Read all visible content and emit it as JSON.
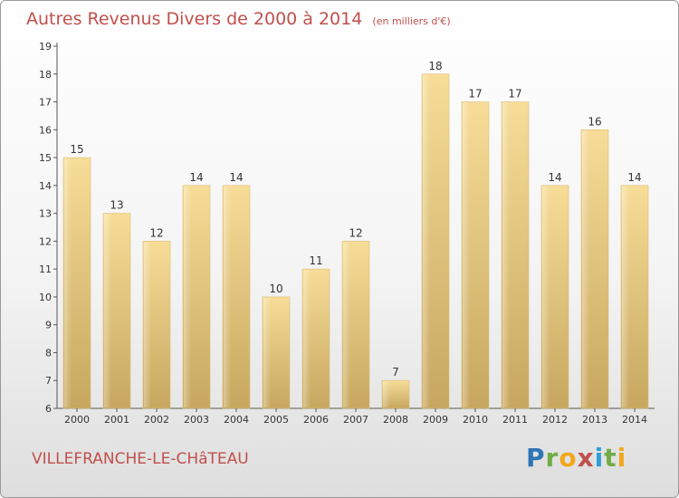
{
  "header": {
    "title": "Autres Revenus Divers de 2000 à 2014",
    "subtitle": "(en milliers d'€)"
  },
  "footer": {
    "commune": "VILLEFRANCHE-LE-CHâTEAU",
    "logo": [
      "P",
      "r",
      "o",
      "x",
      "i",
      "t",
      "i"
    ]
  },
  "chart_data": {
    "type": "bar",
    "title": "Autres Revenus Divers de 2000 à 2014",
    "subtitle": "(en milliers d'€)",
    "xlabel": "",
    "ylabel": "",
    "categories": [
      "2000",
      "2001",
      "2002",
      "2003",
      "2004",
      "2005",
      "2006",
      "2007",
      "2008",
      "2009",
      "2010",
      "2011",
      "2012",
      "2013",
      "2014"
    ],
    "values": [
      15,
      13,
      12,
      14,
      14,
      10,
      11,
      12,
      7,
      18,
      17,
      17,
      14,
      16,
      14
    ],
    "ylim": [
      6,
      19
    ],
    "yticks": [
      6,
      7,
      8,
      9,
      10,
      11,
      12,
      13,
      14,
      15,
      16,
      17,
      18,
      19
    ],
    "grid": false,
    "bar_color": "#f2d590",
    "bar_color_dark": "#c8a861",
    "title_color": "#c0504d"
  }
}
